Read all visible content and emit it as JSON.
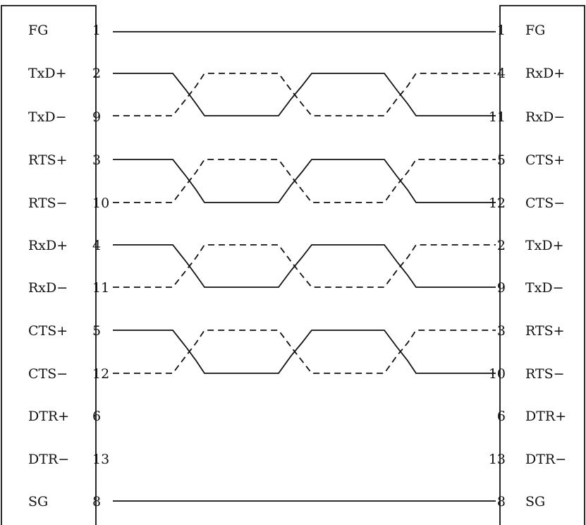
{
  "left_connector": {
    "pins": [
      {
        "signal": "FG",
        "pin": "1"
      },
      {
        "signal": "TxD+",
        "pin": "2"
      },
      {
        "signal": "TxD−",
        "pin": "9"
      },
      {
        "signal": "RTS+",
        "pin": "3"
      },
      {
        "signal": "RTS−",
        "pin": "10"
      },
      {
        "signal": "RxD+",
        "pin": "4"
      },
      {
        "signal": "RxD−",
        "pin": "11"
      },
      {
        "signal": "CTS+",
        "pin": "5"
      },
      {
        "signal": "CTS−",
        "pin": "12"
      },
      {
        "signal": "DTR+",
        "pin": "6"
      },
      {
        "signal": "DTR−",
        "pin": "13"
      },
      {
        "signal": "SG",
        "pin": "8"
      }
    ]
  },
  "right_connector": {
    "pins": [
      {
        "signal": "FG",
        "pin": "1"
      },
      {
        "signal": "RxD+",
        "pin": "4"
      },
      {
        "signal": "RxD−",
        "pin": "11"
      },
      {
        "signal": "CTS+",
        "pin": "5"
      },
      {
        "signal": "CTS−",
        "pin": "12"
      },
      {
        "signal": "TxD+",
        "pin": "2"
      },
      {
        "signal": "TxD−",
        "pin": "9"
      },
      {
        "signal": "RTS+",
        "pin": "3"
      },
      {
        "signal": "RTS−",
        "pin": "10"
      },
      {
        "signal": "DTR+",
        "pin": "6"
      },
      {
        "signal": "DTR−",
        "pin": "13"
      },
      {
        "signal": "SG",
        "pin": "8"
      }
    ]
  },
  "connections": [
    {
      "from": "FG",
      "to": "FG",
      "style": "solid"
    },
    {
      "from": "TxD+",
      "to": "RxD+",
      "style": "twisted-pair",
      "pair_with": "TxD−"
    },
    {
      "from": "TxD−",
      "to": "RxD−",
      "style": "twisted-pair",
      "pair_with": "TxD+"
    },
    {
      "from": "RTS+",
      "to": "CTS+",
      "style": "twisted-pair",
      "pair_with": "RTS−"
    },
    {
      "from": "RTS−",
      "to": "CTS−",
      "style": "twisted-pair",
      "pair_with": "RTS+"
    },
    {
      "from": "RxD+",
      "to": "TxD+",
      "style": "twisted-pair",
      "pair_with": "RxD−"
    },
    {
      "from": "RxD−",
      "to": "TxD−",
      "style": "twisted-pair",
      "pair_with": "RxD+"
    },
    {
      "from": "CTS+",
      "to": "RTS+",
      "style": "twisted-pair",
      "pair_with": "CTS−"
    },
    {
      "from": "CTS−",
      "to": "RTS−",
      "style": "twisted-pair",
      "pair_with": "CTS+"
    },
    {
      "from": "SG",
      "to": "SG",
      "style": "solid"
    }
  ],
  "colors": {
    "ink": "#111111",
    "background": "#ffffff"
  }
}
